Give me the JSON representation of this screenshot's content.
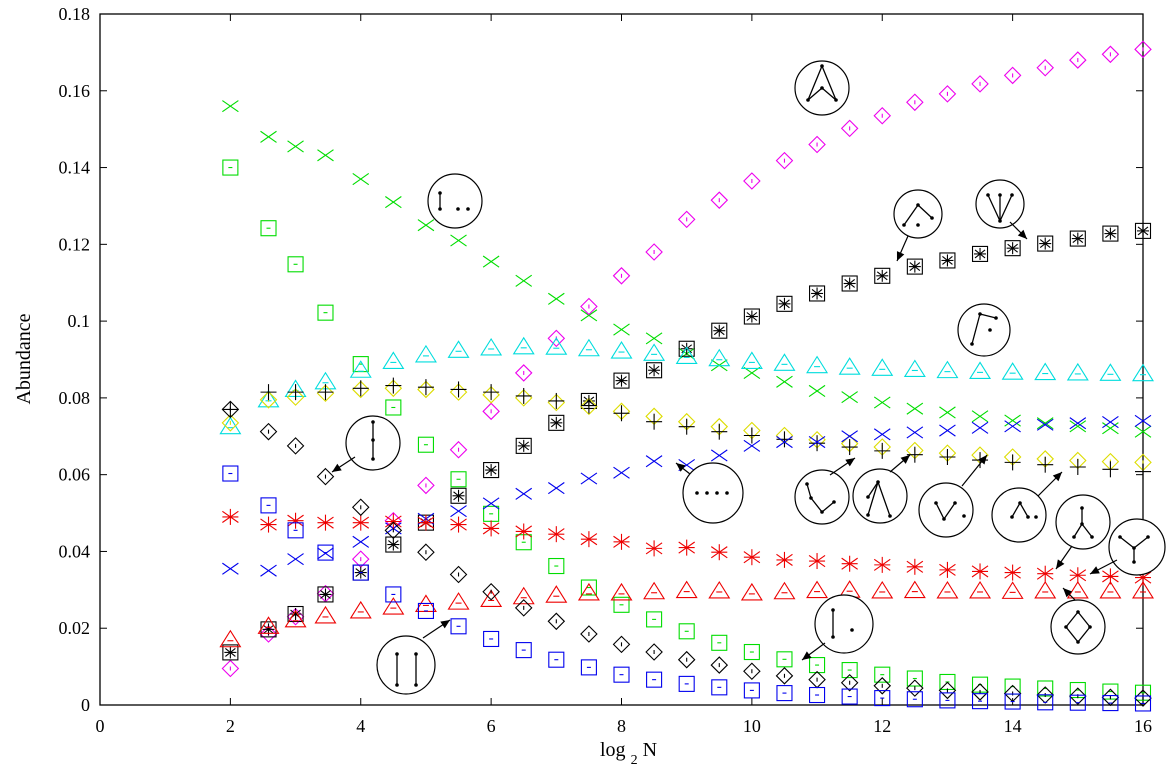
{
  "chart_data": {
    "type": "scatter",
    "title": "",
    "xlabel": "log",
    "xlabel_subscript": "2",
    "xlabel_suffix": "N",
    "ylabel": "Abundance",
    "xlim": [
      0,
      16
    ],
    "ylim": [
      0,
      0.18
    ],
    "xticks": [
      0,
      2,
      4,
      6,
      8,
      10,
      12,
      14,
      16
    ],
    "xtick_labels": [
      "0",
      "2",
      "4",
      "6",
      "8",
      "10",
      "12",
      "14",
      "16"
    ],
    "yticks": [
      0,
      0.02,
      0.04,
      0.06,
      0.08,
      0.1,
      0.12,
      0.14,
      0.16,
      0.18
    ],
    "ytick_labels": [
      "0",
      "0.02",
      "0.04",
      "0.06",
      "0.08",
      "0.1",
      "0.12",
      "0.14",
      "0.16",
      "0.18"
    ],
    "grid": false,
    "legend": "none",
    "colors": {
      "green": "#00dd00",
      "magenta": "#ee00ee",
      "cyan": "#00dddd",
      "yellow": "#dddd00",
      "red": "#ee0000",
      "blue": "#0000ee",
      "black": "#000000"
    },
    "x": [
      2,
      2.585,
      3,
      3.459,
      4,
      4.5,
      5,
      5.5,
      6,
      6.5,
      7,
      7.5,
      8,
      8.5,
      9,
      9.5,
      10,
      10.5,
      11,
      11.5,
      12,
      12.5,
      13,
      13.5,
      14,
      14.5,
      15,
      15.5,
      16
    ],
    "series": [
      {
        "marker": "x",
        "color": "green",
        "values": [
          0.156,
          0.148,
          0.1455,
          0.1432,
          0.137,
          0.131,
          0.125,
          0.121,
          0.1155,
          0.1105,
          0.1058,
          0.1015,
          0.0978,
          0.0955,
          0.0915,
          0.0885,
          0.0865,
          0.0842,
          0.0818,
          0.0802,
          0.0788,
          0.0772,
          0.0762,
          0.0752,
          0.0741,
          0.0734,
          0.0726,
          0.0721,
          0.0712
        ]
      },
      {
        "marker": "square",
        "color": "green",
        "values": [
          0.14,
          0.1242,
          0.1148,
          0.1022,
          0.0888,
          0.0775,
          0.0678,
          0.0588,
          0.0498,
          0.0424,
          0.0362,
          0.0306,
          0.0261,
          0.0223,
          0.0192,
          0.0162,
          0.0138,
          0.0119,
          0.0104,
          0.0091,
          0.0079,
          0.0069,
          0.006,
          0.0053,
          0.0048,
          0.0043,
          0.0039,
          0.0035,
          0.0032
        ]
      },
      {
        "marker": "diamond",
        "color": "magenta",
        "values": [
          0.0095,
          0.0185,
          0.023,
          0.029,
          0.038,
          0.048,
          0.0572,
          0.0665,
          0.0765,
          0.0865,
          0.0955,
          0.1038,
          0.1118,
          0.118,
          0.1265,
          0.1315,
          0.1365,
          0.1418,
          0.146,
          0.1502,
          0.1535,
          0.157,
          0.1592,
          0.1618,
          0.164,
          0.166,
          0.168,
          0.1695,
          0.1708
        ]
      },
      {
        "marker": "square-star",
        "color": "black",
        "values": [
          0.0137,
          0.0197,
          0.0237,
          0.0288,
          0.0345,
          0.0418,
          0.0475,
          0.0545,
          0.0612,
          0.0675,
          0.0735,
          0.0792,
          0.0845,
          0.0872,
          0.0928,
          0.0975,
          0.1012,
          0.1045,
          0.1072,
          0.1098,
          0.1118,
          0.1142,
          0.1158,
          0.1175,
          0.119,
          0.1202,
          0.1215,
          0.1228,
          0.1235
        ]
      },
      {
        "marker": "triangle",
        "color": "cyan",
        "values": [
          0.0725,
          0.0795,
          0.0822,
          0.0842,
          0.0872,
          0.0895,
          0.0912,
          0.0924,
          0.093,
          0.0933,
          0.0932,
          0.0928,
          0.0922,
          0.0916,
          0.0908,
          0.0902,
          0.0895,
          0.089,
          0.0884,
          0.088,
          0.0877,
          0.0874,
          0.0871,
          0.0869,
          0.0867,
          0.0866,
          0.0865,
          0.0864,
          0.0863
        ]
      },
      {
        "marker": "diamond",
        "color": "yellow",
        "values": [
          0.0735,
          0.0795,
          0.0802,
          0.0812,
          0.0822,
          0.0825,
          0.0822,
          0.0815,
          0.0808,
          0.08,
          0.0788,
          0.0778,
          0.0765,
          0.0752,
          0.0738,
          0.0725,
          0.0715,
          0.0702,
          0.0691,
          0.0681,
          0.0672,
          0.0663,
          0.0656,
          0.0651,
          0.0646,
          0.0641,
          0.0637,
          0.0634,
          0.0632
        ]
      },
      {
        "marker": "plus",
        "color": "black",
        "values": [
          0.077,
          0.0815,
          0.0815,
          0.0815,
          0.0825,
          0.0832,
          0.0828,
          0.0822,
          0.0815,
          0.0805,
          0.0792,
          0.078,
          0.076,
          0.0738,
          0.0725,
          0.0712,
          0.0702,
          0.0692,
          0.0682,
          0.0672,
          0.0662,
          0.0652,
          0.0646,
          0.0638,
          0.0632,
          0.0626,
          0.062,
          0.0614,
          0.0608
        ]
      },
      {
        "marker": "x",
        "color": "blue",
        "values": [
          0.0355,
          0.035,
          0.038,
          0.0395,
          0.0425,
          0.046,
          0.0485,
          0.0505,
          0.0525,
          0.055,
          0.0565,
          0.059,
          0.0605,
          0.0635,
          0.0625,
          0.065,
          0.0675,
          0.0685,
          0.0685,
          0.07,
          0.0705,
          0.071,
          0.0715,
          0.0722,
          0.0726,
          0.073,
          0.0734,
          0.0737,
          0.074
        ]
      },
      {
        "marker": "star",
        "color": "red",
        "values": [
          0.049,
          0.047,
          0.048,
          0.0475,
          0.0475,
          0.0478,
          0.0475,
          0.047,
          0.046,
          0.0452,
          0.0445,
          0.0432,
          0.0425,
          0.0408,
          0.041,
          0.0398,
          0.0385,
          0.0378,
          0.0375,
          0.0368,
          0.0365,
          0.036,
          0.0352,
          0.0348,
          0.0345,
          0.0342,
          0.0338,
          0.0335,
          0.0332
        ]
      },
      {
        "marker": "triangle",
        "color": "red",
        "values": [
          0.017,
          0.0205,
          0.0222,
          0.0232,
          0.0245,
          0.0255,
          0.0262,
          0.0268,
          0.0275,
          0.0282,
          0.0286,
          0.0292,
          0.0292,
          0.0295,
          0.0298,
          0.0297,
          0.0292,
          0.0295,
          0.0298,
          0.0299,
          0.0297,
          0.0298,
          0.0297,
          0.0297,
          0.0296,
          0.0297,
          0.0297,
          0.0297,
          0.0297
        ]
      },
      {
        "marker": "diamond",
        "color": "black",
        "values": [
          0.077,
          0.0712,
          0.0675,
          0.0595,
          0.0515,
          0.0455,
          0.0398,
          0.034,
          0.0295,
          0.0253,
          0.0218,
          0.0185,
          0.0158,
          0.0138,
          0.0118,
          0.0104,
          0.0088,
          0.0076,
          0.0066,
          0.0058,
          0.005,
          0.0044,
          0.0038,
          0.0034,
          0.003,
          0.0026,
          0.0023,
          0.002,
          0.0018
        ]
      },
      {
        "marker": "square",
        "color": "blue",
        "values": [
          0.0603,
          0.052,
          0.0455,
          0.0397,
          0.0345,
          0.0288,
          0.0245,
          0.0205,
          0.0172,
          0.0143,
          0.0118,
          0.0098,
          0.0079,
          0.0066,
          0.0055,
          0.0046,
          0.0038,
          0.0031,
          0.0026,
          0.0022,
          0.0018,
          0.0015,
          0.0012,
          0.001,
          0.0009,
          0.0007,
          0.0006,
          0.0005,
          0.0004
        ]
      }
    ]
  }
}
